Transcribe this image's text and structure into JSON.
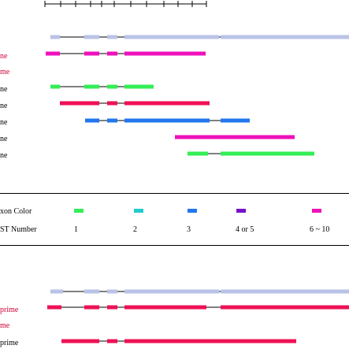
{
  "colors": {
    "exon_gray": "#b9c3e6",
    "intron_line": "#000000",
    "green": "#33ee55",
    "teal": "#22cccc",
    "blue": "#2277ee",
    "purple": "#7711cc",
    "pink": "#ee11bb",
    "red": "#ee1155",
    "label_red": "#cc0033"
  },
  "top_panel": {
    "labels": [
      {
        "text": "ne",
        "color": "red"
      },
      {
        "text": "me",
        "color": "red"
      },
      {
        "text": "ne",
        "color": "black"
      },
      {
        "text": "ne",
        "color": "black"
      },
      {
        "text": "ne",
        "color": "black"
      },
      {
        "text": "ne",
        "color": "black"
      },
      {
        "text": "ne",
        "color": "black"
      }
    ]
  },
  "legend": {
    "exon_color_label": "xon Color",
    "est_number_label": "ST Number",
    "entries": [
      {
        "color": "green",
        "label": "1"
      },
      {
        "color": "teal",
        "label": "2"
      },
      {
        "color": "blue",
        "label": "3"
      },
      {
        "color": "purple",
        "label": "4 or 5"
      },
      {
        "color": "pink",
        "label": "6 ~ 10"
      }
    ]
  },
  "bottom_panel": {
    "labels": [
      {
        "text": "prime",
        "color": "red"
      },
      {
        "text": "me",
        "color": "red"
      },
      {
        "text": "prime",
        "color": "black"
      }
    ]
  }
}
